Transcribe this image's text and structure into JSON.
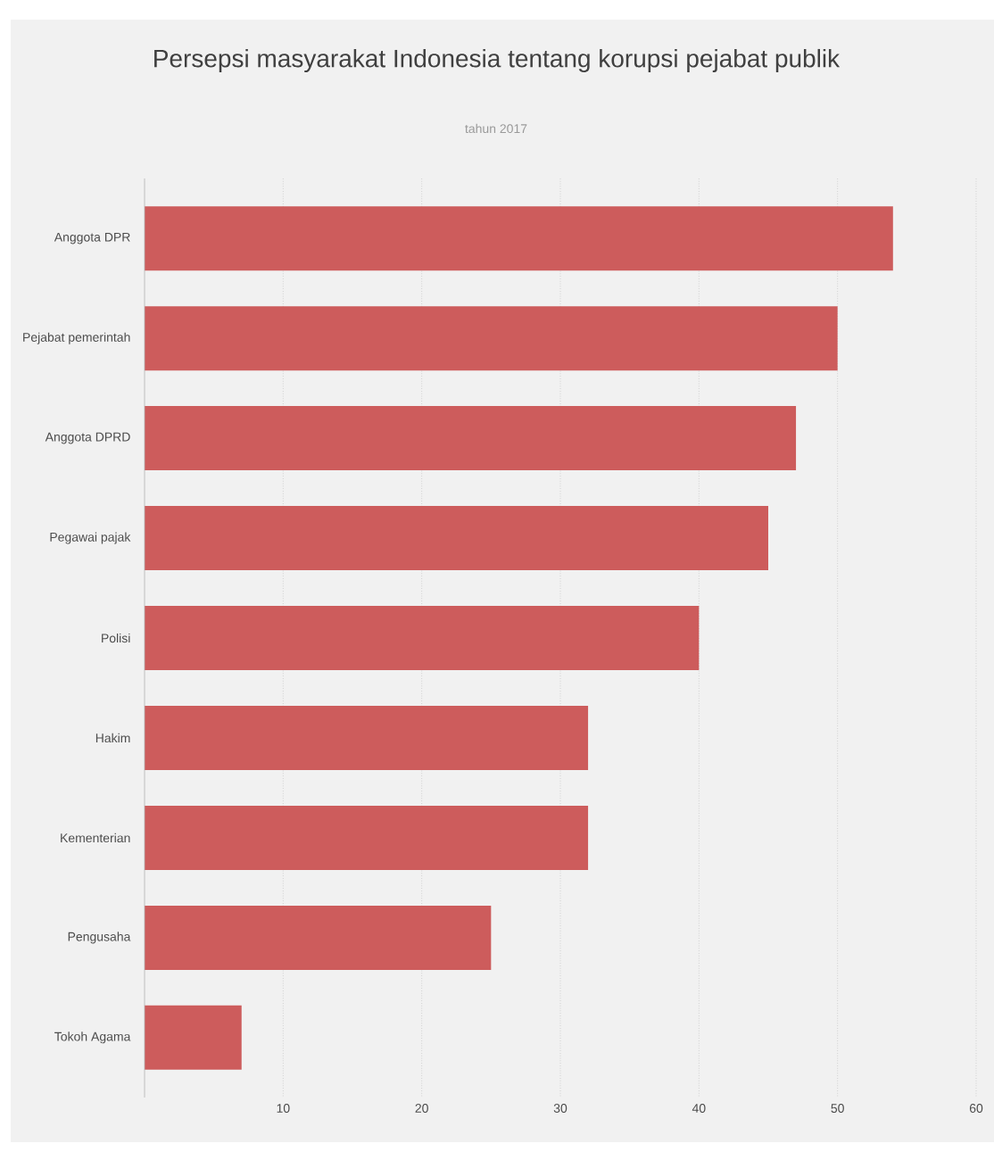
{
  "chart_data": {
    "type": "bar",
    "orientation": "horizontal",
    "title": "Persepsi masyarakat Indonesia tentang korupsi pejabat publik",
    "subtitle": "tahun 2017",
    "categories": [
      "Anggota DPR",
      "Pejabat pemerintah",
      "Anggota DPRD",
      "Pegawai pajak",
      "Polisi",
      "Hakim",
      "Kementerian",
      "Pengusaha",
      "Tokoh Agama"
    ],
    "values": [
      54,
      50,
      47,
      45,
      40,
      32,
      32,
      25,
      7
    ],
    "color": "#cd5c5c",
    "xlim": [
      0,
      60
    ],
    "xticks": [
      10,
      20,
      30,
      40,
      50,
      60
    ],
    "grid": "x"
  }
}
